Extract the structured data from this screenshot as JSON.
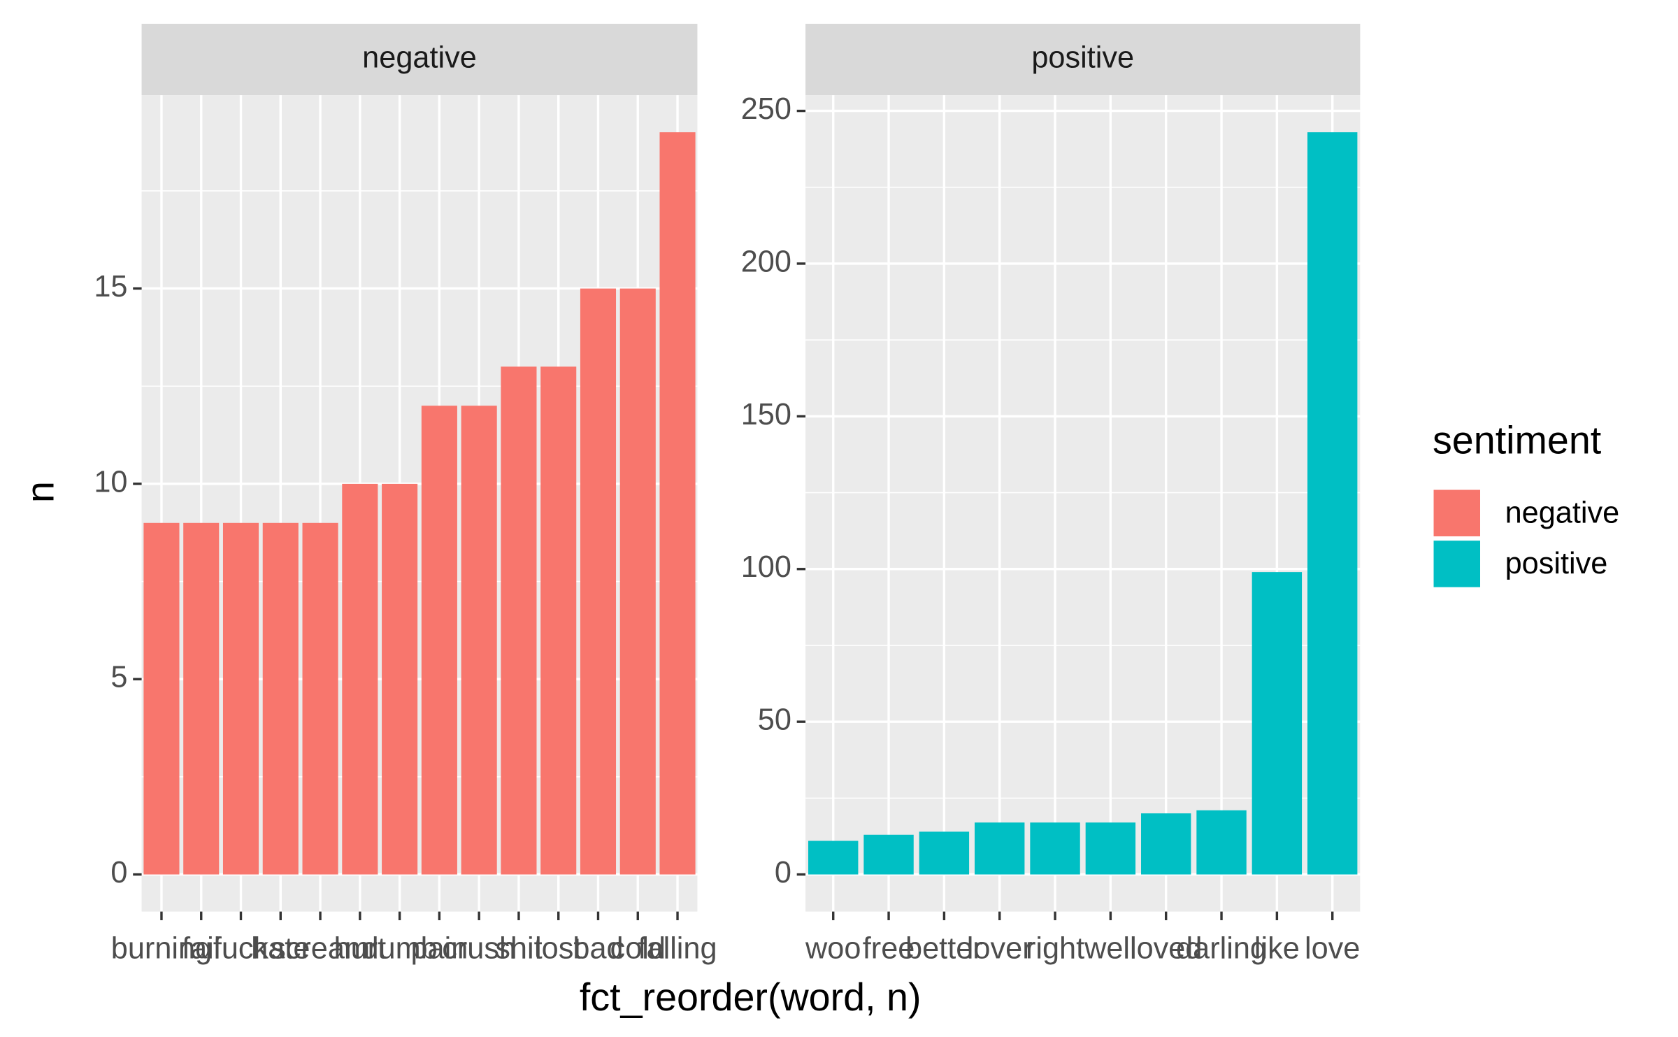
{
  "chart_data": {
    "type": "bar",
    "x_label": "fct_reorder(word, n)",
    "y_label": "n",
    "legend_title": "sentiment",
    "grid": true,
    "panels": [
      {
        "title": "negative",
        "color": "#f8766d",
        "categories": [
          "burning",
          "fail",
          "fuck",
          "hate",
          "scream",
          "hurt",
          "dumb",
          "pain",
          "crush",
          "shit",
          "lost",
          "bad",
          "cold",
          "falling"
        ],
        "values": [
          9,
          9,
          9,
          9,
          9,
          10,
          10,
          12,
          12,
          13,
          13,
          15,
          15,
          19
        ],
        "ylim": [
          -0.95,
          19.95
        ],
        "yticks": [
          0,
          5,
          10,
          15
        ]
      },
      {
        "title": "positive",
        "color": "#00bfc4",
        "categories": [
          "woo",
          "free",
          "better",
          "lover",
          "right",
          "well",
          "loved",
          "darling",
          "like",
          "love"
        ],
        "values": [
          11,
          13,
          14,
          17,
          17,
          17,
          20,
          21,
          99,
          243
        ],
        "ylim": [
          -12.15,
          255.15
        ],
        "yticks": [
          0,
          50,
          100,
          150,
          200,
          250
        ]
      }
    ]
  }
}
